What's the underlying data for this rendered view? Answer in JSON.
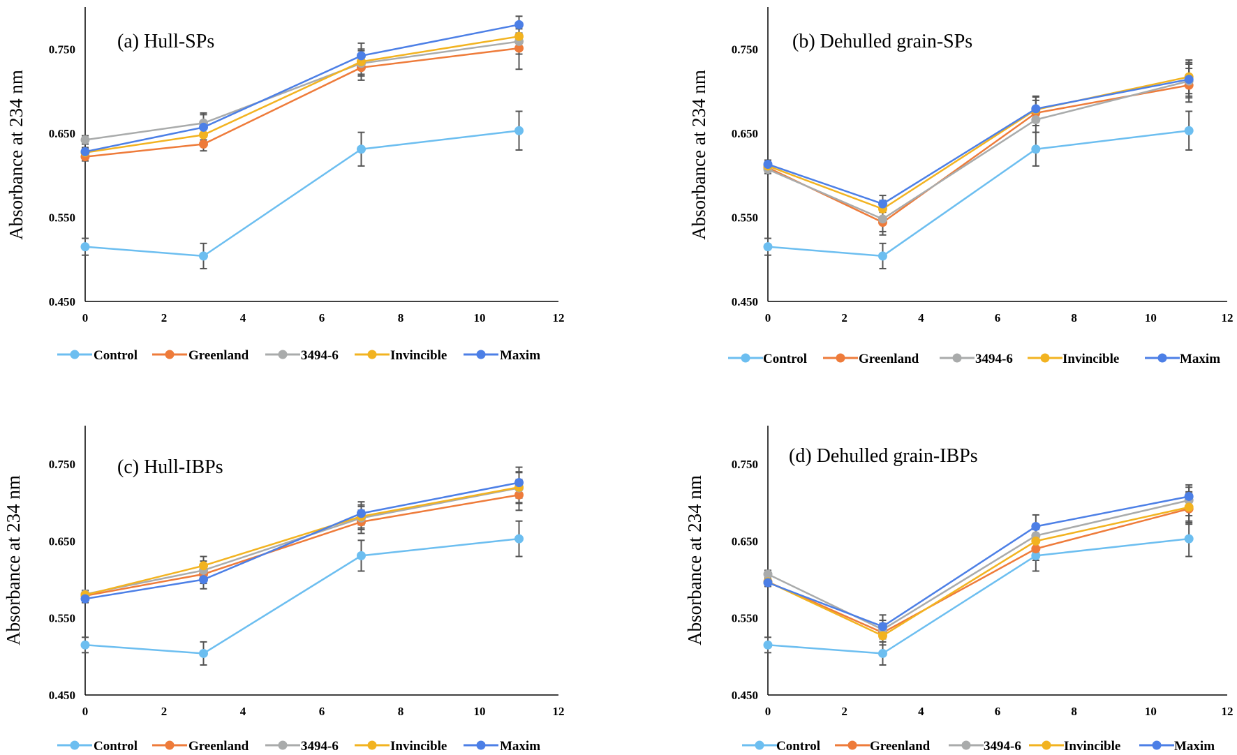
{
  "chart_data": [
    {
      "type": "line",
      "title": "(a) Hull-SPs",
      "xlabel": "",
      "ylabel": "Absorbance at 234 nm",
      "xlim": [
        0,
        12
      ],
      "ylim": [
        0.45,
        0.8
      ],
      "xticks": [
        "0",
        "2",
        "4",
        "6",
        "8",
        "10",
        "12"
      ],
      "yticks": [
        "0.450",
        "0.550",
        "0.650",
        "0.750"
      ],
      "x": [
        0,
        3,
        7,
        11
      ],
      "legend_position": "bottom",
      "series": [
        {
          "name": "Control",
          "color": "#6CBEF0",
          "values": [
            0.515,
            0.504,
            0.631,
            0.653
          ],
          "errors": [
            0.01,
            0.015,
            0.02,
            0.023
          ]
        },
        {
          "name": "Greenland",
          "color": "#EE7B3A",
          "values": [
            0.622,
            0.637,
            0.728,
            0.751
          ],
          "errors": [
            0.005,
            0.008,
            0.015,
            0.025
          ]
        },
        {
          "name": "3494-6",
          "color": "#A9ABAB",
          "values": [
            0.642,
            0.662,
            0.733,
            0.759
          ],
          "errors": [
            0.005,
            0.012,
            0.015,
            0.015
          ]
        },
        {
          "name": "Invincible",
          "color": "#F2B320",
          "values": [
            0.627,
            0.648,
            0.735,
            0.765
          ],
          "errors": [
            0.005,
            0.01,
            0.015,
            0.015
          ]
        },
        {
          "name": "Maxim",
          "color": "#4C7FE6",
          "values": [
            0.628,
            0.657,
            0.742,
            0.779
          ],
          "errors": [
            0.005,
            0.015,
            0.015,
            0.01
          ]
        }
      ]
    },
    {
      "type": "line",
      "title": "(b) Dehulled grain-SPs",
      "xlabel": "",
      "ylabel": "Absorbance at 234 nm",
      "xlim": [
        0,
        12
      ],
      "ylim": [
        0.45,
        0.8
      ],
      "xticks": [
        "0",
        "2",
        "4",
        "6",
        "8",
        "10",
        "12"
      ],
      "yticks": [
        "0.450",
        "0.550",
        "0.650",
        "0.750"
      ],
      "x": [
        0,
        3,
        7,
        11
      ],
      "legend_position": "bottom",
      "series": [
        {
          "name": "Control",
          "color": "#6CBEF0",
          "values": [
            0.515,
            0.504,
            0.631,
            0.653
          ],
          "errors": [
            0.01,
            0.015,
            0.02,
            0.023
          ]
        },
        {
          "name": "Greenland",
          "color": "#EE7B3A",
          "values": [
            0.609,
            0.544,
            0.674,
            0.707
          ],
          "errors": [
            0.005,
            0.015,
            0.015,
            0.02
          ]
        },
        {
          "name": "3494-6",
          "color": "#A9ABAB",
          "values": [
            0.607,
            0.548,
            0.666,
            0.712
          ],
          "errors": [
            0.005,
            0.015,
            0.015,
            0.02
          ]
        },
        {
          "name": "Invincible",
          "color": "#F2B320",
          "values": [
            0.611,
            0.56,
            0.678,
            0.717
          ],
          "errors": [
            0.005,
            0.01,
            0.015,
            0.02
          ]
        },
        {
          "name": "Maxim",
          "color": "#4C7FE6",
          "values": [
            0.613,
            0.566,
            0.679,
            0.714
          ],
          "errors": [
            0.005,
            0.01,
            0.015,
            0.02
          ]
        }
      ]
    },
    {
      "type": "line",
      "title": "(c) Hull-IBPs",
      "xlabel": "",
      "ylabel": "Absorbance at 234 nm",
      "xlim": [
        0,
        12
      ],
      "ylim": [
        0.45,
        0.8
      ],
      "xticks": [
        "0",
        "2",
        "4",
        "6",
        "8",
        "10",
        "12"
      ],
      "yticks": [
        "0.450",
        "0.550",
        "0.650",
        "0.750"
      ],
      "x": [
        0,
        3,
        7,
        11
      ],
      "legend_position": "bottom",
      "series": [
        {
          "name": "Control",
          "color": "#6CBEF0",
          "values": [
            0.515,
            0.504,
            0.631,
            0.653
          ],
          "errors": [
            0.01,
            0.015,
            0.02,
            0.023
          ]
        },
        {
          "name": "Greenland",
          "color": "#EE7B3A",
          "values": [
            0.579,
            0.607,
            0.675,
            0.71
          ],
          "errors": [
            0.005,
            0.012,
            0.015,
            0.02
          ]
        },
        {
          "name": "3494-6",
          "color": "#A9ABAB",
          "values": [
            0.581,
            0.612,
            0.68,
            0.719
          ],
          "errors": [
            0.005,
            0.012,
            0.015,
            0.02
          ]
        },
        {
          "name": "Invincible",
          "color": "#F2B320",
          "values": [
            0.58,
            0.618,
            0.682,
            0.72
          ],
          "errors": [
            0.005,
            0.012,
            0.015,
            0.02
          ]
        },
        {
          "name": "Maxim",
          "color": "#4C7FE6",
          "values": [
            0.575,
            0.6,
            0.686,
            0.726
          ],
          "errors": [
            0.005,
            0.012,
            0.015,
            0.02
          ]
        }
      ]
    },
    {
      "type": "line",
      "title": "(d) Dehulled grain-IBPs",
      "xlabel": "",
      "ylabel": "Absorbance at 234 nm",
      "xlim": [
        0,
        12
      ],
      "ylim": [
        0.45,
        0.8
      ],
      "xticks": [
        "0",
        "2",
        "4",
        "6",
        "8",
        "10",
        "12"
      ],
      "yticks": [
        "0.450",
        "0.550",
        "0.650",
        "0.750"
      ],
      "x": [
        0,
        3,
        7,
        11
      ],
      "legend_position": "bottom",
      "series": [
        {
          "name": "Control",
          "color": "#6CBEF0",
          "values": [
            0.515,
            0.504,
            0.631,
            0.653
          ],
          "errors": [
            0.01,
            0.015,
            0.02,
            0.023
          ]
        },
        {
          "name": "Greenland",
          "color": "#EE7B3A",
          "values": [
            0.597,
            0.531,
            0.64,
            0.692
          ],
          "errors": [
            0.005,
            0.012,
            0.015,
            0.02
          ]
        },
        {
          "name": "3494-6",
          "color": "#A9ABAB",
          "values": [
            0.607,
            0.535,
            0.657,
            0.703
          ],
          "errors": [
            0.005,
            0.012,
            0.015,
            0.02
          ]
        },
        {
          "name": "Invincible",
          "color": "#F2B320",
          "values": [
            0.597,
            0.527,
            0.65,
            0.694
          ],
          "errors": [
            0.005,
            0.012,
            0.015,
            0.02
          ]
        },
        {
          "name": "Maxim",
          "color": "#4C7FE6",
          "values": [
            0.596,
            0.539,
            0.669,
            0.708
          ],
          "errors": [
            0.005,
            0.015,
            0.015,
            0.012
          ]
        }
      ]
    }
  ]
}
